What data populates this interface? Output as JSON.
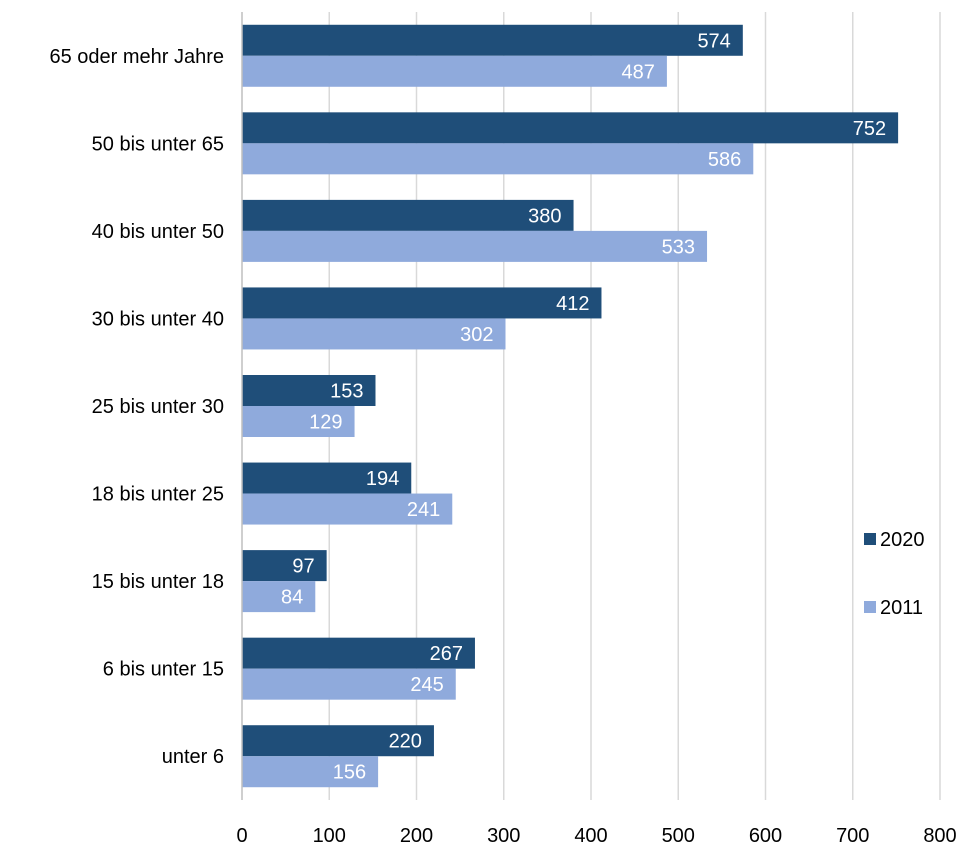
{
  "chart_data": {
    "type": "bar",
    "orientation": "horizontal",
    "categories": [
      "65 oder mehr Jahre",
      "50 bis unter 65",
      "40 bis unter 50",
      "30 bis unter 40",
      "25 bis unter 30",
      "18 bis unter 25",
      "15 bis unter 18",
      "6 bis unter 15",
      "unter 6"
    ],
    "series": [
      {
        "name": "2020",
        "color": "#1f4e79",
        "values": [
          574,
          752,
          380,
          412,
          153,
          194,
          97,
          267,
          220
        ]
      },
      {
        "name": "2011",
        "color": "#8faadc",
        "values": [
          487,
          586,
          533,
          302,
          129,
          241,
          84,
          245,
          156
        ]
      }
    ],
    "xlim": [
      0,
      800
    ],
    "xticks": [
      "0",
      "100",
      "200",
      "300",
      "400",
      "500",
      "600",
      "700",
      "800"
    ],
    "grid": true,
    "legend_position": "right"
  }
}
